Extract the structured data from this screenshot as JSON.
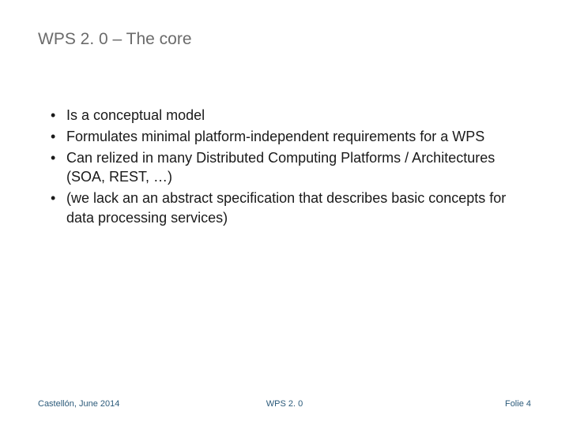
{
  "slide": {
    "title": "WPS 2. 0 – The core",
    "bullets": [
      "Is a conceptual model",
      "Formulates minimal platform-independent requirements for a WPS",
      "Can relized in many Distributed Computing Platforms / Architectures (SOA, REST, …)",
      "(we lack an an abstract specification that describes basic concepts for data processing services)"
    ],
    "footer": {
      "left": "Castellón, June 2014",
      "center": "WPS 2. 0",
      "right": "Folie 4"
    },
    "styling": {
      "title_color": "#6b6b6b",
      "title_fontsize": 21,
      "bullet_color": "#1a1a1a",
      "bullet_fontsize": 18,
      "footer_color": "#2b5a7a",
      "footer_fontsize": 11,
      "background_color": "#ffffff",
      "font_family": "Verdana"
    }
  }
}
